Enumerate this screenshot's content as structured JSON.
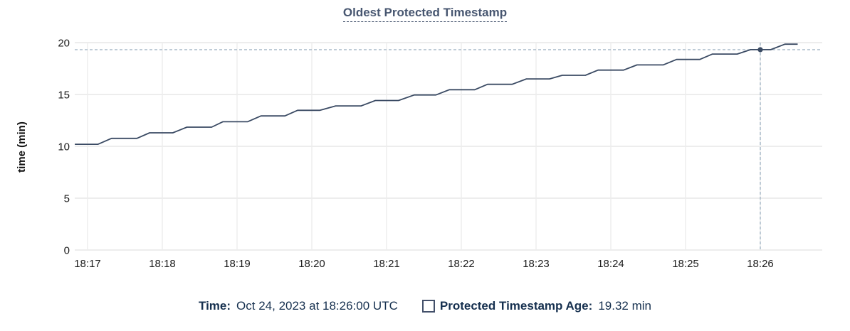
{
  "colors": {
    "background": "#ffffff",
    "title": "#475670",
    "line": "#3a4a63",
    "marker": "#3a4a63",
    "crosshair": "#a7b9c8",
    "grid": "#ededed",
    "tick_text": "#1d1d1d",
    "axis_title_text": "#111111",
    "legend_text": "#16304f",
    "checkbox_border": "#43506a"
  },
  "chart_data": {
    "type": "line",
    "title": "Oldest Protected Timestamp",
    "xlabel": "",
    "ylabel": "time (min)",
    "x_tick_labels": [
      "18:17",
      "18:18",
      "18:19",
      "18:20",
      "18:21",
      "18:22",
      "18:23",
      "18:24",
      "18:25",
      "18:26"
    ],
    "y_tick_labels": [
      "0",
      "5",
      "10",
      "15",
      "20"
    ],
    "ylim": [
      0,
      20
    ],
    "x_range_minutes_after_1800": [
      16.83,
      26.83
    ],
    "grid": true,
    "legend_position": "bottom",
    "series": [
      {
        "name": "Protected Timestamp Age",
        "unit": "min",
        "points_t_minutes_after_1800": [
          [
            16.83,
            10.2
          ],
          [
            17.14,
            10.2
          ],
          [
            17.32,
            10.77
          ],
          [
            17.66,
            10.77
          ],
          [
            17.83,
            11.3
          ],
          [
            18.14,
            11.3
          ],
          [
            18.33,
            11.85
          ],
          [
            18.66,
            11.85
          ],
          [
            18.81,
            12.37
          ],
          [
            19.14,
            12.37
          ],
          [
            19.32,
            12.93
          ],
          [
            19.64,
            12.93
          ],
          [
            19.81,
            13.47
          ],
          [
            20.11,
            13.47
          ],
          [
            20.32,
            13.9
          ],
          [
            20.66,
            13.9
          ],
          [
            20.85,
            14.42
          ],
          [
            21.16,
            14.42
          ],
          [
            21.37,
            14.95
          ],
          [
            21.66,
            14.95
          ],
          [
            21.84,
            15.46
          ],
          [
            22.18,
            15.46
          ],
          [
            22.35,
            15.98
          ],
          [
            22.68,
            15.98
          ],
          [
            22.87,
            16.5
          ],
          [
            23.18,
            16.5
          ],
          [
            23.35,
            16.85
          ],
          [
            23.66,
            16.85
          ],
          [
            23.83,
            17.35
          ],
          [
            24.17,
            17.35
          ],
          [
            24.35,
            17.85
          ],
          [
            24.7,
            17.85
          ],
          [
            24.88,
            18.38
          ],
          [
            25.19,
            18.38
          ],
          [
            25.36,
            18.9
          ],
          [
            25.69,
            18.9
          ],
          [
            25.87,
            19.32
          ],
          [
            26.14,
            19.32
          ],
          [
            26.33,
            19.85
          ],
          [
            26.5,
            19.85
          ]
        ]
      }
    ],
    "highlight": {
      "t_minutes_after_1800": 26.0,
      "time": "18:26:00",
      "value": 19.32
    }
  },
  "tooltip": {
    "time_label": "Time:",
    "time_value": "Oct 24, 2023 at 18:26:00 UTC",
    "series_label": "Protected Timestamp Age:",
    "series_value": "19.32 min"
  }
}
